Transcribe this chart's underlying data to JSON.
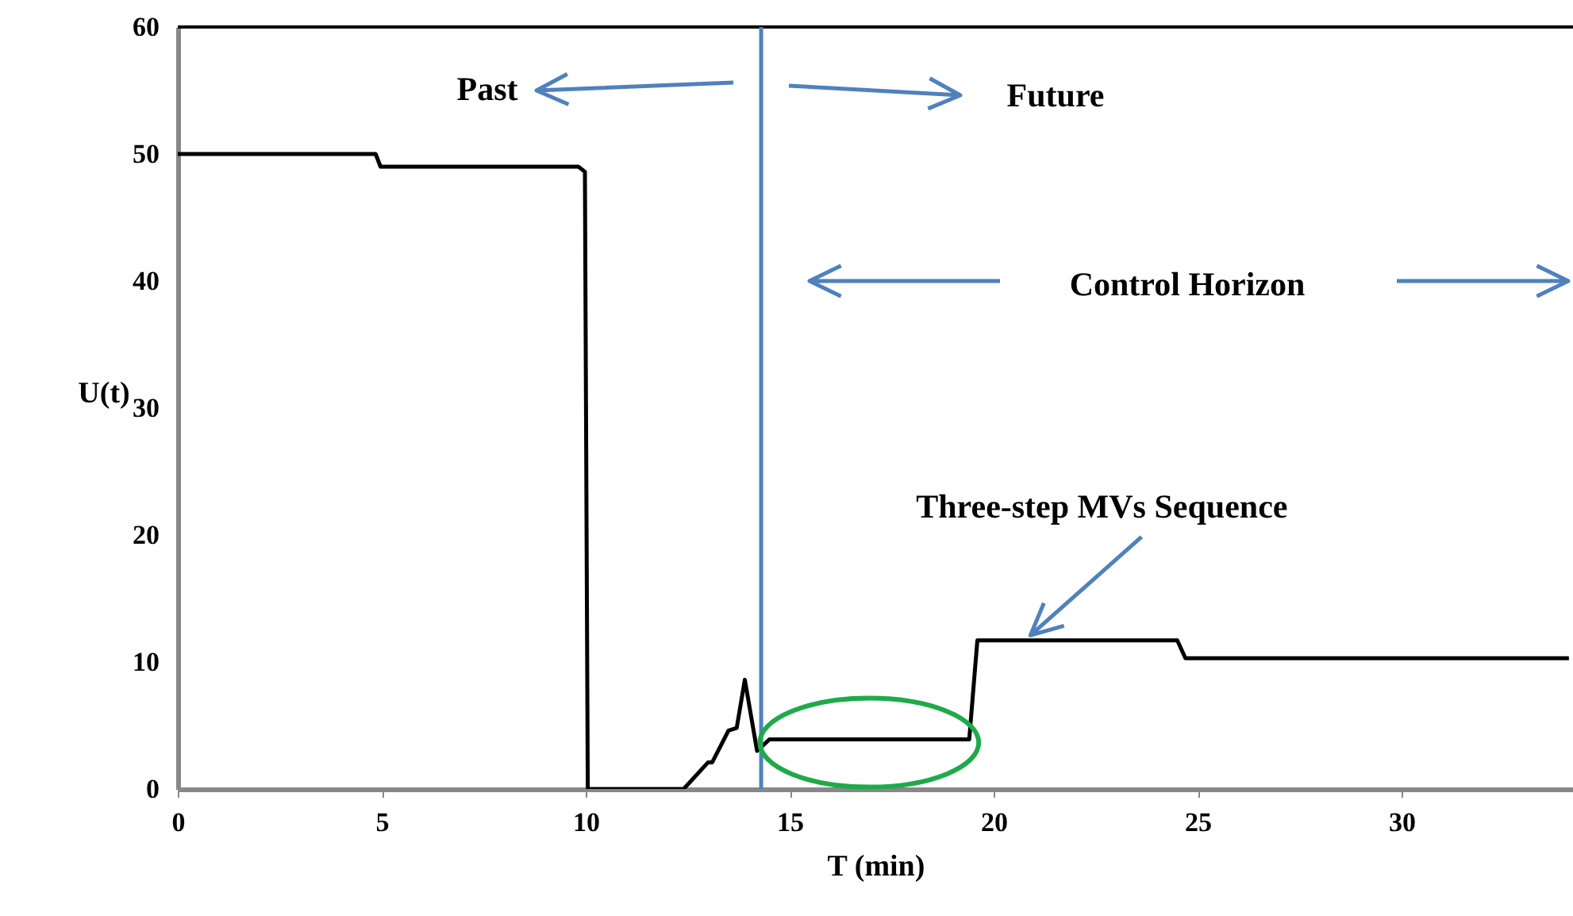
{
  "chart_data": {
    "type": "line",
    "xlabel": "T (min)",
    "ylabel": "U(t)",
    "x": [
      0,
      4.85,
      4.97,
      9.82,
      9.98,
      10.05,
      12.4,
      13.0,
      13.1,
      13.5,
      13.7,
      13.9,
      14.2,
      14.5,
      19.4,
      19.6,
      24.5,
      24.7,
      34.1
    ],
    "series": [
      {
        "color": "#000000",
        "values": [
          50,
          50,
          49,
          49,
          48.6,
          0,
          0,
          2.1,
          2.1,
          4.6,
          4.8,
          8.6,
          3.0,
          3.9,
          3.9,
          11.7,
          11.7,
          10.3,
          10.3
        ]
      }
    ],
    "xlim": [
      0,
      34.2
    ],
    "xticks": [
      0,
      5,
      10,
      15,
      20,
      25,
      30
    ],
    "ylim": [
      0,
      60
    ],
    "yticks": [
      0,
      10,
      20,
      30,
      40,
      50,
      60
    ],
    "grid": false,
    "marker": "none",
    "line_style": "solid",
    "ref_lines": [
      {
        "axis": "x",
        "value": 14.3,
        "color": "#4f81bd"
      }
    ],
    "annotations": [
      "Past",
      "Future",
      "Control Horizon",
      {
        "text": "Three-step MVs Sequence",
        "x": 20.9,
        "y": 12.1
      }
    ]
  }
}
